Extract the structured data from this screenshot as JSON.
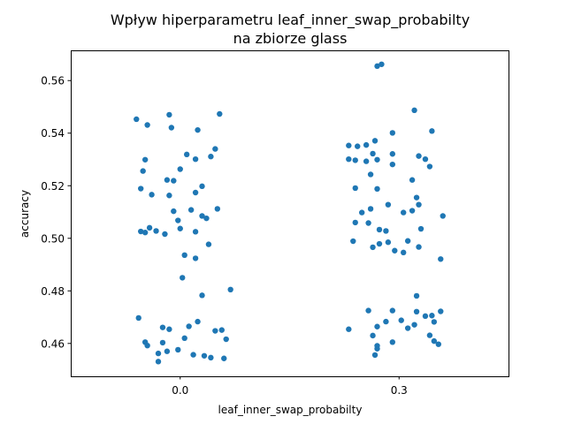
{
  "chart_data": {
    "type": "scatter",
    "title_line1": "Wpływ hiperparametru leaf_inner_swap_probabilty",
    "title_line2": "na zbiorze glass",
    "xlabel": "leaf_inner_swap_probabilty",
    "ylabel": "accuracy",
    "categories": [
      "0.0",
      "0.3"
    ],
    "ylim": [
      0.4475,
      0.5715
    ],
    "yticks": [
      0.46,
      0.48,
      0.5,
      0.52,
      0.54,
      0.56
    ],
    "ytick_labels": [
      "0.46",
      "0.48",
      "0.50",
      "0.52",
      "0.54",
      "0.56"
    ],
    "color": "#1f77b4",
    "grid": false,
    "series": [
      {
        "category": "0.0",
        "points": [
          {
            "jitter": -0.2,
            "y": 0.5453
          },
          {
            "jitter": -0.15,
            "y": 0.5431
          },
          {
            "jitter": -0.05,
            "y": 0.547
          },
          {
            "jitter": 0.18,
            "y": 0.5473
          },
          {
            "jitter": -0.04,
            "y": 0.5421
          },
          {
            "jitter": 0.08,
            "y": 0.5412
          },
          {
            "jitter": 0.16,
            "y": 0.534
          },
          {
            "jitter": 0.03,
            "y": 0.5319
          },
          {
            "jitter": 0.14,
            "y": 0.5311
          },
          {
            "jitter": 0.07,
            "y": 0.5301
          },
          {
            "jitter": -0.16,
            "y": 0.5299
          },
          {
            "jitter": 0.0,
            "y": 0.5263
          },
          {
            "jitter": -0.17,
            "y": 0.5256
          },
          {
            "jitter": -0.06,
            "y": 0.5222
          },
          {
            "jitter": -0.03,
            "y": 0.5219
          },
          {
            "jitter": 0.1,
            "y": 0.5198
          },
          {
            "jitter": -0.18,
            "y": 0.5189
          },
          {
            "jitter": 0.07,
            "y": 0.5174
          },
          {
            "jitter": -0.13,
            "y": 0.5166
          },
          {
            "jitter": -0.05,
            "y": 0.5163
          },
          {
            "jitter": 0.17,
            "y": 0.5112
          },
          {
            "jitter": 0.05,
            "y": 0.5108
          },
          {
            "jitter": -0.03,
            "y": 0.5103
          },
          {
            "jitter": 0.1,
            "y": 0.5085
          },
          {
            "jitter": 0.12,
            "y": 0.5076
          },
          {
            "jitter": -0.01,
            "y": 0.5068
          },
          {
            "jitter": -0.14,
            "y": 0.504
          },
          {
            "jitter": 0.0,
            "y": 0.5037
          },
          {
            "jitter": -0.18,
            "y": 0.5026
          },
          {
            "jitter": -0.11,
            "y": 0.5028
          },
          {
            "jitter": 0.07,
            "y": 0.5025
          },
          {
            "jitter": -0.07,
            "y": 0.5016
          },
          {
            "jitter": -0.16,
            "y": 0.5022
          },
          {
            "jitter": 0.13,
            "y": 0.4977
          },
          {
            "jitter": 0.02,
            "y": 0.4936
          },
          {
            "jitter": 0.07,
            "y": 0.4924
          },
          {
            "jitter": 0.01,
            "y": 0.485
          },
          {
            "jitter": 0.23,
            "y": 0.4805
          },
          {
            "jitter": 0.1,
            "y": 0.4783
          },
          {
            "jitter": -0.19,
            "y": 0.4697
          },
          {
            "jitter": 0.08,
            "y": 0.4683
          },
          {
            "jitter": -0.08,
            "y": 0.4661
          },
          {
            "jitter": 0.04,
            "y": 0.4665
          },
          {
            "jitter": -0.05,
            "y": 0.4654
          },
          {
            "jitter": 0.19,
            "y": 0.4651
          },
          {
            "jitter": 0.16,
            "y": 0.4648
          },
          {
            "jitter": 0.21,
            "y": 0.4616
          },
          {
            "jitter": 0.02,
            "y": 0.462
          },
          {
            "jitter": -0.16,
            "y": 0.4605
          },
          {
            "jitter": -0.08,
            "y": 0.4603
          },
          {
            "jitter": -0.15,
            "y": 0.4592
          },
          {
            "jitter": -0.01,
            "y": 0.4576
          },
          {
            "jitter": -0.06,
            "y": 0.457
          },
          {
            "jitter": 0.06,
            "y": 0.4557
          },
          {
            "jitter": 0.11,
            "y": 0.4553
          },
          {
            "jitter": 0.14,
            "y": 0.4546
          },
          {
            "jitter": 0.2,
            "y": 0.4543
          },
          {
            "jitter": -0.1,
            "y": 0.4562
          },
          {
            "jitter": -0.1,
            "y": 0.4531
          }
        ]
      },
      {
        "category": "0.3",
        "points": [
          {
            "jitter": -0.1,
            "y": 0.5655
          },
          {
            "jitter": -0.08,
            "y": 0.5662
          },
          {
            "jitter": 0.07,
            "y": 0.5487
          },
          {
            "jitter": 0.15,
            "y": 0.5408
          },
          {
            "jitter": -0.03,
            "y": 0.5401
          },
          {
            "jitter": -0.11,
            "y": 0.5371
          },
          {
            "jitter": -0.15,
            "y": 0.5355
          },
          {
            "jitter": -0.19,
            "y": 0.535
          },
          {
            "jitter": -0.23,
            "y": 0.5353
          },
          {
            "jitter": -0.12,
            "y": 0.5322
          },
          {
            "jitter": -0.03,
            "y": 0.5321
          },
          {
            "jitter": 0.09,
            "y": 0.5313
          },
          {
            "jitter": -0.23,
            "y": 0.5301
          },
          {
            "jitter": -0.2,
            "y": 0.5297
          },
          {
            "jitter": -0.1,
            "y": 0.5299
          },
          {
            "jitter": 0.12,
            "y": 0.5301
          },
          {
            "jitter": -0.15,
            "y": 0.5293
          },
          {
            "jitter": -0.03,
            "y": 0.5281
          },
          {
            "jitter": 0.14,
            "y": 0.5273
          },
          {
            "jitter": -0.13,
            "y": 0.5243
          },
          {
            "jitter": 0.06,
            "y": 0.5222
          },
          {
            "jitter": -0.2,
            "y": 0.5191
          },
          {
            "jitter": -0.1,
            "y": 0.5188
          },
          {
            "jitter": 0.08,
            "y": 0.5155
          },
          {
            "jitter": 0.09,
            "y": 0.5128
          },
          {
            "jitter": -0.05,
            "y": 0.5128
          },
          {
            "jitter": -0.13,
            "y": 0.5112
          },
          {
            "jitter": 0.06,
            "y": 0.5105
          },
          {
            "jitter": 0.02,
            "y": 0.5098
          },
          {
            "jitter": -0.17,
            "y": 0.5098
          },
          {
            "jitter": 0.2,
            "y": 0.5085
          },
          {
            "jitter": -0.2,
            "y": 0.506
          },
          {
            "jitter": -0.14,
            "y": 0.5058
          },
          {
            "jitter": -0.09,
            "y": 0.5033
          },
          {
            "jitter": -0.06,
            "y": 0.5028
          },
          {
            "jitter": 0.1,
            "y": 0.5036
          },
          {
            "jitter": -0.21,
            "y": 0.4989
          },
          {
            "jitter": -0.05,
            "y": 0.4985
          },
          {
            "jitter": 0.04,
            "y": 0.499
          },
          {
            "jitter": -0.09,
            "y": 0.4979
          },
          {
            "jitter": -0.12,
            "y": 0.4966
          },
          {
            "jitter": 0.09,
            "y": 0.4967
          },
          {
            "jitter": -0.02,
            "y": 0.4953
          },
          {
            "jitter": 0.02,
            "y": 0.4946
          },
          {
            "jitter": 0.19,
            "y": 0.4921
          },
          {
            "jitter": 0.08,
            "y": 0.4781
          },
          {
            "jitter": -0.14,
            "y": 0.4725
          },
          {
            "jitter": -0.03,
            "y": 0.4725
          },
          {
            "jitter": 0.08,
            "y": 0.4721
          },
          {
            "jitter": 0.19,
            "y": 0.4722
          },
          {
            "jitter": 0.15,
            "y": 0.4706
          },
          {
            "jitter": 0.12,
            "y": 0.4704
          },
          {
            "jitter": 0.01,
            "y": 0.4688
          },
          {
            "jitter": -0.06,
            "y": 0.4683
          },
          {
            "jitter": 0.16,
            "y": 0.4682
          },
          {
            "jitter": 0.07,
            "y": 0.4671
          },
          {
            "jitter": -0.1,
            "y": 0.4664
          },
          {
            "jitter": 0.04,
            "y": 0.4658
          },
          {
            "jitter": -0.23,
            "y": 0.4654
          },
          {
            "jitter": 0.14,
            "y": 0.4631
          },
          {
            "jitter": -0.12,
            "y": 0.463
          },
          {
            "jitter": 0.16,
            "y": 0.4609
          },
          {
            "jitter": -0.03,
            "y": 0.4605
          },
          {
            "jitter": 0.18,
            "y": 0.4597
          },
          {
            "jitter": -0.1,
            "y": 0.4591
          },
          {
            "jitter": -0.1,
            "y": 0.458
          },
          {
            "jitter": -0.11,
            "y": 0.4556
          }
        ]
      }
    ]
  }
}
